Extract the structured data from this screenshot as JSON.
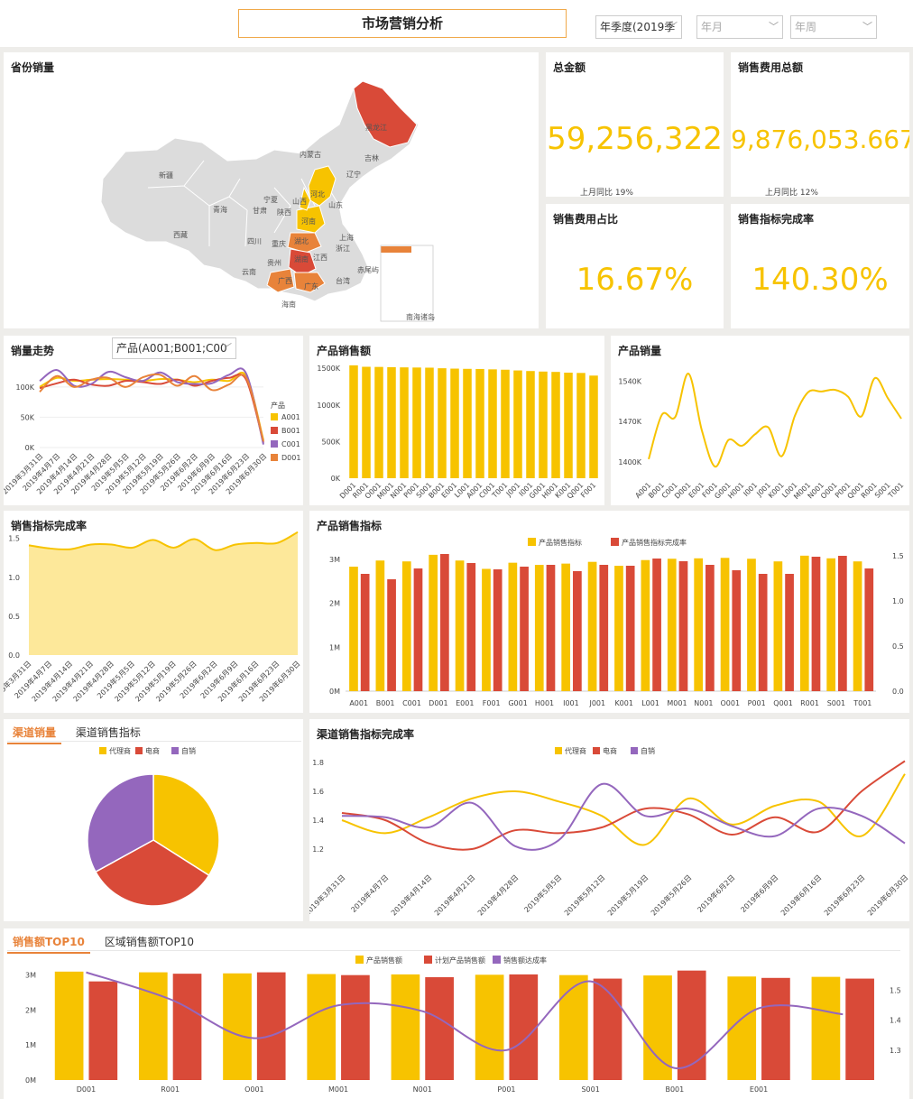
{
  "header": {
    "title": "市场营销分析",
    "filters": [
      {
        "label": "年季度(2019季",
        "placeholder": false
      },
      {
        "label": "年月",
        "placeholder": true
      },
      {
        "label": "年周",
        "placeholder": true
      }
    ]
  },
  "map_panel": {
    "title": "省份销量",
    "provinces": [
      "黑龙江",
      "吉林",
      "辽宁",
      "内蒙古",
      "新疆",
      "西藏",
      "青海",
      "甘肃",
      "宁夏",
      "陕西",
      "山西",
      "河北",
      "山东",
      "河南",
      "湖北",
      "湖南",
      "四川",
      "重庆",
      "贵州",
      "云南",
      "广西",
      "广东",
      "江西",
      "浙江",
      "上海",
      "台湾",
      "海南",
      "南海诸岛"
    ],
    "highlight_colors": {
      "red": "#d94a38",
      "orange": "#e8833a",
      "yellow": "#f7c300",
      "grey": "#dcdcdc"
    }
  },
  "kpis": [
    {
      "title": "总金额",
      "value": "59,256,322",
      "sub": "上月同比  19%"
    },
    {
      "title": "销售费用总额",
      "value": "9,876,053.667",
      "sub": "上月同比  12%"
    },
    {
      "title": "销售费用占比",
      "value": "16.67%"
    },
    {
      "title": "销售指标完成率",
      "value": "140.30%"
    }
  ],
  "colors": {
    "yellow": "#f7c300",
    "red": "#d94a38",
    "purple": "#9467bd",
    "orange": "#e8833a",
    "pale_yellow": "#fde89a"
  },
  "sales_trend": {
    "title": "销量走势",
    "filter_label": "产品(A001;B001;C00",
    "legend_title": "产品",
    "chart_data": {
      "type": "line",
      "x": [
        "2019年3月31日",
        "2019年4月7日",
        "2019年4月14日",
        "2019年4月21日",
        "2019年4月28日",
        "2019年5月5日",
        "2019年5月12日",
        "2019年5月19日",
        "2019年5月26日",
        "2019年6月2日",
        "2019年6月9日",
        "2019年6月16日",
        "2019年6月23日",
        "2019年6月30日"
      ],
      "y_ticks": [
        "100K",
        "50K",
        "0K"
      ],
      "ylim": [
        0,
        140000
      ],
      "series": [
        {
          "name": "A001",
          "values": [
            100000,
            115000,
            110000,
            112000,
            113000,
            112000,
            110000,
            113000,
            112000,
            108000,
            112000,
            110000,
            118000,
            12000
          ]
        },
        {
          "name": "B001",
          "values": [
            98000,
            106000,
            112000,
            104000,
            102000,
            110000,
            108000,
            105000,
            112000,
            102000,
            110000,
            115000,
            112000,
            8000
          ]
        },
        {
          "name": "C001",
          "values": [
            110000,
            128000,
            102000,
            105000,
            125000,
            116000,
            110000,
            124000,
            108000,
            105000,
            106000,
            120000,
            122000,
            5000
          ]
        },
        {
          "name": "D001",
          "values": [
            92000,
            118000,
            100000,
            112000,
            115000,
            100000,
            116000,
            120000,
            102000,
            118000,
            95000,
            104000,
            115000,
            10000
          ]
        }
      ]
    }
  },
  "product_sales_amount": {
    "title": "产品销售额",
    "chart_data": {
      "type": "bar",
      "categories": [
        "D001",
        "R001",
        "O001",
        "M001",
        "N001",
        "P001",
        "S001",
        "B001",
        "E001",
        "L001",
        "A001",
        "C001",
        "T001",
        "J001",
        "I001",
        "G001",
        "H001",
        "K001",
        "Q001",
        "F001"
      ],
      "values": [
        1540000,
        1520000,
        1518000,
        1515000,
        1512000,
        1510000,
        1508000,
        1500000,
        1495000,
        1492000,
        1490000,
        1485000,
        1480000,
        1470000,
        1462000,
        1455000,
        1450000,
        1440000,
        1436000,
        1400000
      ],
      "y_ticks": [
        "1500K",
        "1000K",
        "500K",
        "0K"
      ],
      "ylim": [
        0,
        1600000
      ]
    }
  },
  "product_volume": {
    "title": "产品销量",
    "chart_data": {
      "type": "line",
      "categories": [
        "A001",
        "B001",
        "C001",
        "D001",
        "E001",
        "F001",
        "G001",
        "H001",
        "I001",
        "J001",
        "K001",
        "L001",
        "M001",
        "N001",
        "O001",
        "P001",
        "Q001",
        "R001",
        "S001",
        "T001"
      ],
      "values": [
        1405000,
        1482000,
        1478000,
        1553000,
        1455000,
        1392000,
        1438000,
        1428000,
        1448000,
        1460000,
        1410000,
        1480000,
        1521000,
        1522000,
        1525000,
        1513000,
        1479000,
        1545000,
        1510000,
        1475000
      ],
      "y_ticks": [
        "1540K",
        "1470K",
        "1400K"
      ],
      "ylim": [
        1372000,
        1575000
      ]
    }
  },
  "target_completion": {
    "title": "销售指标完成率",
    "chart_data": {
      "type": "area",
      "x": [
        "2019年3月31日",
        "2019年4月7日",
        "2019年4月14日",
        "2019年4月21日",
        "2019年4月28日",
        "2019年5月5日",
        "2019年5月12日",
        "2019年5月19日",
        "2019年5月26日",
        "2019年6月2日",
        "2019年6月9日",
        "2019年6月16日",
        "2019年6月23日",
        "2019年6月30日"
      ],
      "values": [
        1.41,
        1.37,
        1.36,
        1.42,
        1.42,
        1.38,
        1.48,
        1.38,
        1.49,
        1.35,
        1.42,
        1.44,
        1.44,
        1.58
      ],
      "y_ticks": [
        "1.5",
        "1.0",
        "0.5",
        "0.0"
      ],
      "ylim": [
        0,
        1.6
      ]
    }
  },
  "product_target": {
    "title": "产品销售指标",
    "chart_data": {
      "type": "bar",
      "categories": [
        "A001",
        "B001",
        "C001",
        "D001",
        "E001",
        "F001",
        "G001",
        "H001",
        "I001",
        "J001",
        "K001",
        "L001",
        "M001",
        "N001",
        "O001",
        "P001",
        "Q001",
        "R001",
        "S001",
        "T001"
      ],
      "series": [
        {
          "name": "产品销售指标",
          "axis": "left",
          "values": [
            2830000,
            2970000,
            2950000,
            3100000,
            2970000,
            2780000,
            2920000,
            2870000,
            2900000,
            2940000,
            2850000,
            2980000,
            3010000,
            3020000,
            3030000,
            3010000,
            2950000,
            3080000,
            3020000,
            2950000
          ]
        },
        {
          "name": "产品销售指标完成率",
          "axis": "right",
          "values": [
            1.3,
            1.24,
            1.36,
            1.52,
            1.42,
            1.35,
            1.38,
            1.4,
            1.33,
            1.4,
            1.39,
            1.47,
            1.44,
            1.4,
            1.34,
            1.3,
            1.3,
            1.49,
            1.5,
            1.36
          ]
        }
      ],
      "y_ticks_left": [
        "3M",
        "2M",
        "1M",
        "0M"
      ],
      "y_ticks_right": [
        "1.5",
        "1.0",
        "0.5",
        "0.0"
      ],
      "ylim_left": [
        0,
        3200000
      ],
      "ylim_right": [
        0,
        1.56
      ]
    }
  },
  "channel_sales": {
    "tabs": [
      "渠道销量",
      "渠道销售指标"
    ],
    "chart_data": {
      "type": "pie",
      "labels": [
        "代理商",
        "电商",
        "自销"
      ],
      "values": [
        34,
        33,
        33
      ]
    }
  },
  "channel_completion": {
    "title": "渠道销售指标完成率",
    "chart_data": {
      "type": "line",
      "x": [
        "2019年3月31日",
        "2019年4月7日",
        "2019年4月14日",
        "2019年4月21日",
        "2019年4月28日",
        "2019年5月5日",
        "2019年5月12日",
        "2019年5月19日",
        "2019年5月26日",
        "2019年6月2日",
        "2019年6月9日",
        "2019年6月16日",
        "2019年6月23日",
        "2019年6月30日"
      ],
      "series": [
        {
          "name": "代理商",
          "values": [
            1.4,
            1.31,
            1.42,
            1.55,
            1.6,
            1.53,
            1.43,
            1.23,
            1.55,
            1.37,
            1.5,
            1.53,
            1.29,
            1.72
          ]
        },
        {
          "name": "电商",
          "values": [
            1.45,
            1.4,
            1.24,
            1.2,
            1.33,
            1.31,
            1.35,
            1.48,
            1.44,
            1.3,
            1.42,
            1.32,
            1.6,
            1.81
          ]
        },
        {
          "name": "自销",
          "values": [
            1.43,
            1.42,
            1.35,
            1.52,
            1.22,
            1.26,
            1.65,
            1.43,
            1.48,
            1.36,
            1.29,
            1.48,
            1.43,
            1.24
          ]
        }
      ],
      "y_ticks": [
        "1.8",
        "1.6",
        "1.4",
        "1.2"
      ],
      "ylim": [
        1.1,
        1.85
      ]
    }
  },
  "top10": {
    "tabs": [
      "销售额TOP10",
      "区域销售额TOP10"
    ],
    "chart_data": {
      "type": "bar",
      "categories": [
        "D001",
        "R001",
        "O001",
        "M001",
        "N001",
        "P001",
        "S001",
        "B001",
        "E001",
        ""
      ],
      "series": [
        {
          "name": "产品销售额",
          "axis": "left",
          "values": [
            3100000,
            3080000,
            3050000,
            3030000,
            3020000,
            3010000,
            3000000,
            2990000,
            2960000,
            2950000
          ]
        },
        {
          "name": "计划产品销售额",
          "axis": "left",
          "values": [
            2820000,
            3040000,
            3080000,
            3000000,
            2940000,
            3020000,
            2900000,
            3130000,
            2920000,
            2900000
          ]
        },
        {
          "name": "销售额达成率",
          "axis": "right",
          "values": [
            1.56,
            1.47,
            1.34,
            1.45,
            1.43,
            1.3,
            1.53,
            1.24,
            1.44,
            1.42
          ]
        }
      ],
      "y_ticks_left": [
        "3M",
        "2M",
        "1M",
        "0M"
      ],
      "y_ticks_right": [
        "1.5",
        "1.4",
        "1.3"
      ],
      "ylim_left": [
        0,
        3250000
      ],
      "ylim_right": [
        1.2,
        1.58
      ]
    }
  }
}
